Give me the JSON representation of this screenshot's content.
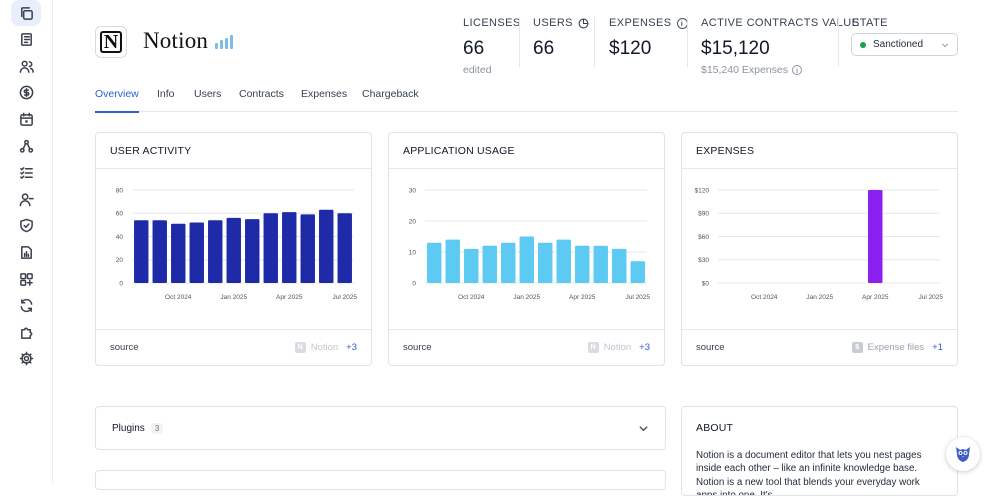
{
  "nav": {
    "items": [
      {
        "name": "copy-icon",
        "active": true
      },
      {
        "name": "ledger-icon"
      },
      {
        "name": "users-icon"
      },
      {
        "name": "dollar-icon"
      },
      {
        "name": "calendar-icon"
      },
      {
        "name": "integrations-icon"
      },
      {
        "name": "checklist-icon"
      },
      {
        "name": "user-remove-icon"
      },
      {
        "name": "shield-icon"
      },
      {
        "name": "report-icon"
      },
      {
        "name": "apps-icon"
      },
      {
        "name": "sync-icon"
      },
      {
        "name": "puzzle-icon"
      },
      {
        "name": "settings-icon"
      }
    ]
  },
  "app": {
    "name": "Notion",
    "logo_letter": "N"
  },
  "stats": {
    "licenses": {
      "label": "LICENSES",
      "value": "66",
      "sub": "edited"
    },
    "users": {
      "label": "USERS",
      "value": "66"
    },
    "expenses": {
      "label": "EXPENSES",
      "value": "$120"
    },
    "contracts": {
      "label": "ACTIVE CONTRACTS VALUE",
      "value": "$15,120",
      "sub": "$15,240 Expenses"
    },
    "state": {
      "label": "STATE",
      "value": "Sanctioned",
      "color": "#16a34a"
    }
  },
  "tabs": [
    "Overview",
    "Info",
    "Users",
    "Contracts",
    "Expenses",
    "Chargeback"
  ],
  "cards": {
    "user_activity": {
      "title": "USER ACTIVITY",
      "footer_left": "source",
      "footer_source": "Notion",
      "footer_more": "+3"
    },
    "app_usage": {
      "title": "APPLICATION USAGE",
      "footer_left": "source",
      "footer_source": "Notion",
      "footer_more": "+3"
    },
    "expenses": {
      "title": "EXPENSES",
      "footer_left": "source",
      "footer_source": "Expense files",
      "footer_more": "+1"
    }
  },
  "chart_data": [
    {
      "type": "bar",
      "title": "USER ACTIVITY",
      "color": "#1e2aa8",
      "yticks": [
        "0",
        "20",
        "40",
        "60",
        "80"
      ],
      "ylim": [
        0,
        80
      ],
      "xticks": [
        "Oct 2024",
        "Jan 2025",
        "Apr 2025",
        "Jul 2025"
      ],
      "values": [
        54,
        54,
        51,
        52,
        54,
        56,
        55,
        60,
        61,
        59,
        63,
        60
      ]
    },
    {
      "type": "bar",
      "title": "APPLICATION USAGE",
      "color": "#5ccaf2",
      "yticks": [
        "0",
        "10",
        "20",
        "30"
      ],
      "ylim": [
        0,
        30
      ],
      "xticks": [
        "Oct 2024",
        "Jan 2025",
        "Apr 2025",
        "Jul 2025"
      ],
      "values": [
        13,
        14,
        11,
        12,
        13,
        15,
        13,
        14,
        12,
        12,
        11,
        7
      ]
    },
    {
      "type": "bar",
      "title": "EXPENSES",
      "color": "#8a1ff0",
      "yticks": [
        "$0",
        "$30",
        "$60",
        "$90",
        "$120"
      ],
      "ylim": [
        0,
        120
      ],
      "xticks": [
        "Oct 2024",
        "Jan 2025",
        "Apr 2025",
        "Jul 2025"
      ],
      "values": [
        0,
        0,
        0,
        0,
        0,
        0,
        0,
        0,
        120,
        0,
        0,
        0
      ]
    }
  ],
  "plugins": {
    "title": "Plugins",
    "count": "3"
  },
  "about": {
    "title": "ABOUT",
    "text": "Notion is a document editor that lets you nest pages inside each other – like an infinite knowledge base. Notion is a new tool that blends your everyday work apps into one. It's"
  }
}
